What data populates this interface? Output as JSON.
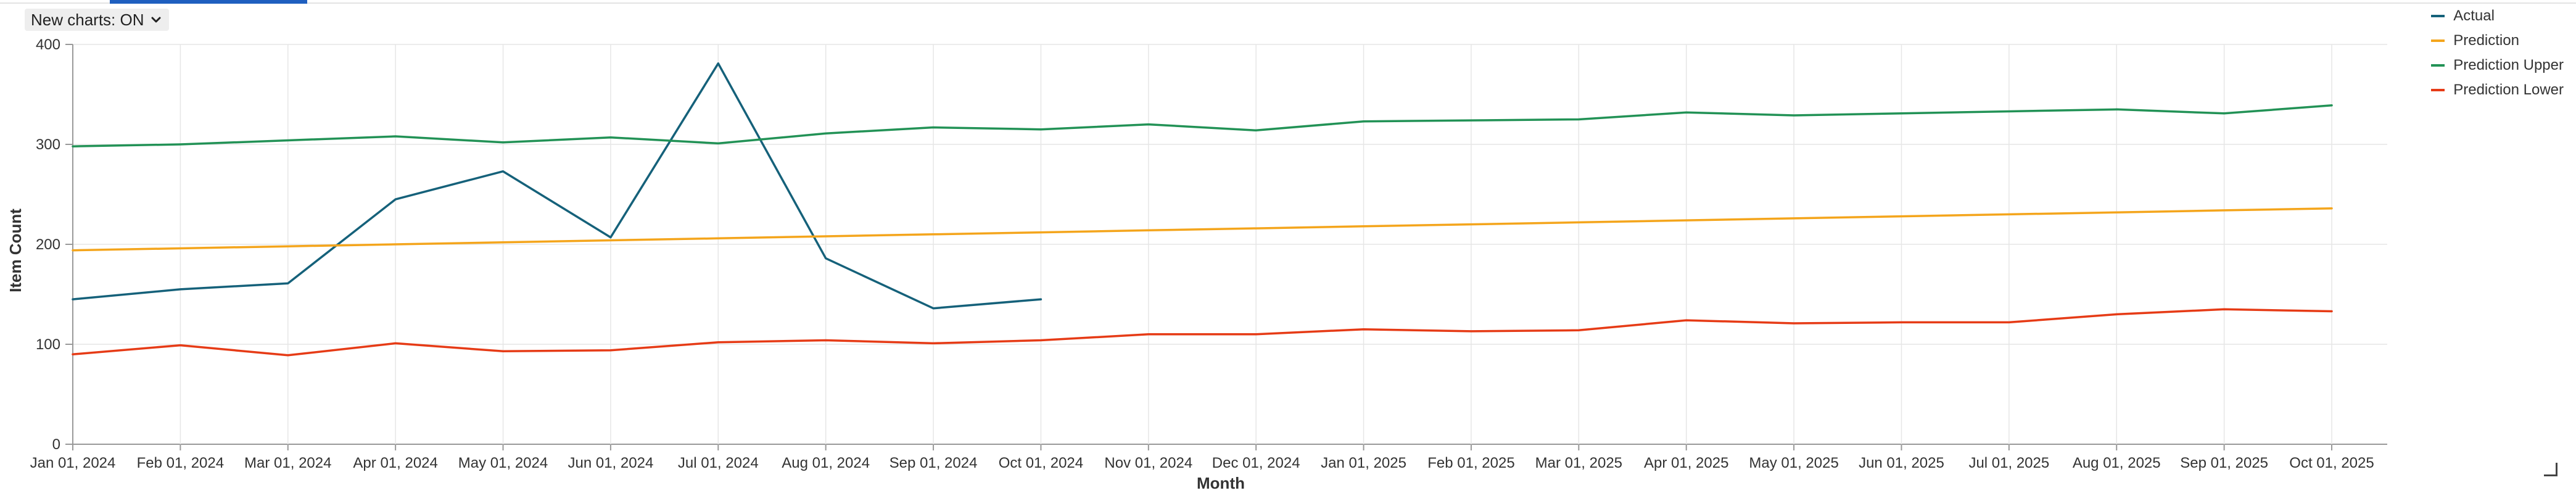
{
  "toggle": {
    "label": "New charts: ON",
    "icon": "chevron-down-icon"
  },
  "legend": [
    {
      "label": "Actual",
      "color": "#15617a"
    },
    {
      "label": "Prediction",
      "color": "#f4a51c"
    },
    {
      "label": "Prediction Upper",
      "color": "#229256"
    },
    {
      "label": "Prediction Lower",
      "color": "#e63b16"
    }
  ],
  "chart_data": {
    "type": "line",
    "xlabel": "Month",
    "ylabel": "Item Count",
    "ylim": [
      0,
      400
    ],
    "yticks": [
      0,
      100,
      200,
      300,
      400
    ],
    "grid": true,
    "legend_position": "top-right",
    "categories": [
      "Jan 01, 2024",
      "Feb 01, 2024",
      "Mar 01, 2024",
      "Apr 01, 2024",
      "May 01, 2024",
      "Jun 01, 2024",
      "Jul 01, 2024",
      "Aug 01, 2024",
      "Sep 01, 2024",
      "Oct 01, 2024",
      "Nov 01, 2024",
      "Dec 01, 2024",
      "Jan 01, 2025",
      "Feb 01, 2025",
      "Mar 01, 2025",
      "Apr 01, 2025",
      "May 01, 2025",
      "Jun 01, 2025",
      "Jul 01, 2025",
      "Aug 01, 2025",
      "Sep 01, 2025",
      "Oct 01, 2025"
    ],
    "series": [
      {
        "name": "Actual",
        "color": "#15617a",
        "values": [
          145,
          155,
          161,
          245,
          273,
          207,
          381,
          186,
          136,
          145,
          null,
          null,
          null,
          null,
          null,
          null,
          null,
          null,
          null,
          null,
          null,
          null
        ]
      },
      {
        "name": "Prediction",
        "color": "#f4a51c",
        "values": [
          194,
          196,
          198,
          200,
          202,
          204,
          206,
          208,
          210,
          212,
          214,
          216,
          218,
          220,
          222,
          224,
          226,
          228,
          230,
          232,
          234,
          236
        ]
      },
      {
        "name": "Prediction Upper",
        "color": "#229256",
        "values": [
          298,
          300,
          304,
          308,
          302,
          307,
          301,
          311,
          317,
          315,
          320,
          314,
          323,
          324,
          325,
          332,
          329,
          331,
          333,
          335,
          331,
          339
        ]
      },
      {
        "name": "Prediction Lower",
        "color": "#e63b16",
        "values": [
          90,
          99,
          89,
          101,
          93,
          94,
          102,
          104,
          101,
          104,
          110,
          110,
          115,
          113,
          114,
          124,
          121,
          122,
          122,
          130,
          135,
          133
        ]
      }
    ]
  }
}
